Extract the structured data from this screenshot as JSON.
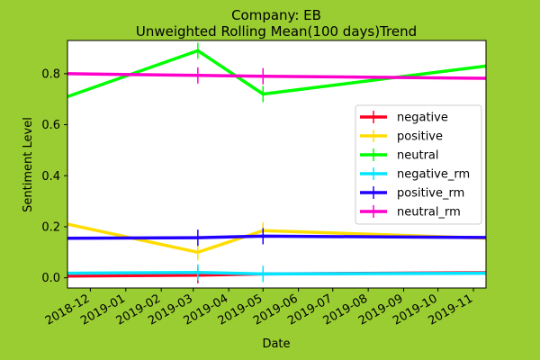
{
  "chart_data": {
    "type": "line",
    "title": "Company: EB",
    "subtitle": "Unweighted Rolling Mean(100 days)Trend",
    "xlabel": "Date",
    "ylabel": "Sentiment Level",
    "xlim": [
      "2018-11-11",
      "2019-11-12"
    ],
    "ylim": [
      -0.04,
      0.93
    ],
    "x_ticks": [
      "2018-12",
      "2019-01",
      "2019-02",
      "2019-03",
      "2019-04",
      "2019-05",
      "2019-06",
      "2019-07",
      "2019-08",
      "2019-09",
      "2019-10",
      "2019-11"
    ],
    "y_ticks": [
      "0.0",
      "0.2",
      "0.4",
      "0.6",
      "0.8"
    ],
    "y_tick_values": [
      0.0,
      0.2,
      0.4,
      0.6,
      0.8
    ],
    "grid": false,
    "legend_position": "center-right",
    "background_color": "#9acd32",
    "plot_background": "#ffffff",
    "series": [
      {
        "name": "negative",
        "color": "#ff0022",
        "points": [
          [
            "2018-11-11",
            0.007
          ],
          [
            "2019-03-05",
            0.01
          ],
          [
            "2019-05-01",
            0.015
          ],
          [
            "2019-11-12",
            0.02
          ]
        ],
        "marked": [
          "2019-03-05",
          "2019-05-01"
        ]
      },
      {
        "name": "positive",
        "color": "#ffdd00",
        "points": [
          [
            "2018-11-11",
            0.21
          ],
          [
            "2019-03-05",
            0.1
          ],
          [
            "2019-05-01",
            0.185
          ],
          [
            "2019-11-12",
            0.155
          ]
        ],
        "marked": [
          "2019-03-05",
          "2019-05-01"
        ]
      },
      {
        "name": "neutral",
        "color": "#00ff00",
        "points": [
          [
            "2018-11-11",
            0.71
          ],
          [
            "2019-03-05",
            0.89
          ],
          [
            "2019-05-01",
            0.72
          ],
          [
            "2019-11-12",
            0.83
          ]
        ],
        "marked": [
          "2019-03-05",
          "2019-05-01"
        ]
      },
      {
        "name": "negative_rm",
        "color": "#00e5ff",
        "points": [
          [
            "2018-11-11",
            0.018
          ],
          [
            "2019-03-05",
            0.021
          ],
          [
            "2019-05-01",
            0.015
          ],
          [
            "2019-11-12",
            0.018
          ]
        ],
        "marked": [
          "2019-03-05",
          "2019-05-01"
        ]
      },
      {
        "name": "positive_rm",
        "color": "#2200ff",
        "points": [
          [
            "2018-11-11",
            0.155
          ],
          [
            "2019-03-05",
            0.157
          ],
          [
            "2019-05-01",
            0.163
          ],
          [
            "2019-11-12",
            0.158
          ]
        ],
        "marked": [
          "2019-03-05",
          "2019-05-01"
        ]
      },
      {
        "name": "neutral_rm",
        "color": "#ff00cc",
        "points": [
          [
            "2018-11-11",
            0.8
          ],
          [
            "2019-03-05",
            0.793
          ],
          [
            "2019-05-01",
            0.79
          ],
          [
            "2019-11-12",
            0.782
          ]
        ],
        "marked": [
          "2019-03-05",
          "2019-05-01"
        ]
      }
    ]
  }
}
